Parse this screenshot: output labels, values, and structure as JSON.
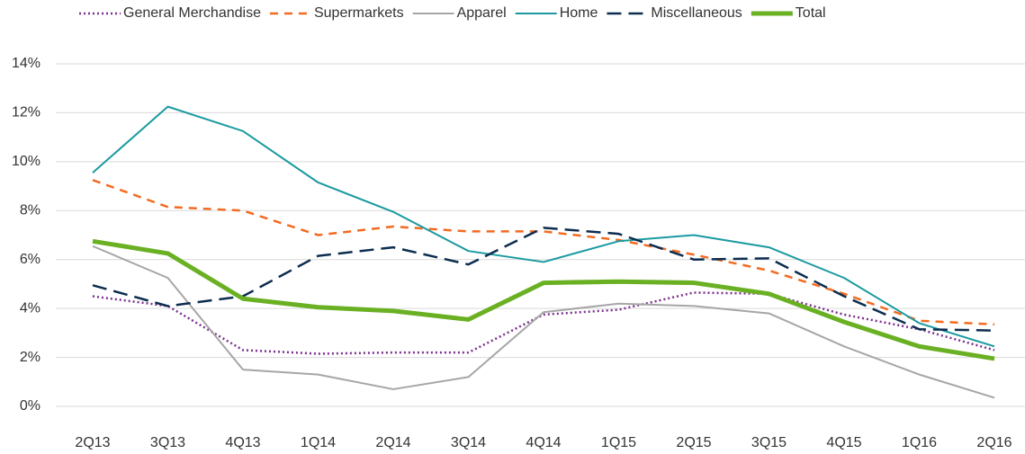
{
  "chart_data": {
    "type": "line",
    "categories": [
      "2Q13",
      "3Q13",
      "4Q13",
      "1Q14",
      "2Q14",
      "3Q14",
      "4Q14",
      "1Q15",
      "2Q15",
      "3Q15",
      "4Q15",
      "1Q16",
      "2Q16"
    ],
    "series": [
      {
        "name": "General Merchandise",
        "color": "#7b2f8e",
        "style": "dotted",
        "values": [
          4.5,
          4.1,
          2.3,
          2.15,
          2.2,
          2.2,
          3.75,
          3.95,
          4.65,
          4.6,
          3.75,
          3.15,
          2.3
        ]
      },
      {
        "name": "Supermarkets",
        "color": "#f26b21",
        "style": "dashed",
        "values": [
          9.25,
          8.15,
          8.0,
          7.0,
          7.35,
          7.15,
          7.15,
          6.8,
          6.2,
          5.55,
          4.6,
          3.5,
          3.35
        ]
      },
      {
        "name": "Apparel",
        "color": "#a6a6a6",
        "style": "solid",
        "values": [
          6.55,
          5.25,
          1.5,
          1.3,
          0.7,
          1.2,
          3.85,
          4.2,
          4.1,
          3.8,
          2.45,
          1.3,
          0.35
        ]
      },
      {
        "name": "Home",
        "color": "#1a9aa0",
        "style": "solid",
        "values": [
          9.55,
          12.25,
          11.25,
          9.15,
          7.95,
          6.35,
          5.9,
          6.75,
          7.0,
          6.5,
          5.25,
          3.4,
          2.45
        ]
      },
      {
        "name": "Miscellaneous",
        "color": "#0c2d4f",
        "style": "longdash",
        "values": [
          4.95,
          4.1,
          4.5,
          6.15,
          6.5,
          5.8,
          7.3,
          7.05,
          6.0,
          6.05,
          4.5,
          3.15,
          3.1
        ]
      },
      {
        "name": "Total",
        "color": "#6ab023",
        "style": "thick",
        "values": [
          6.75,
          6.25,
          4.4,
          4.05,
          3.9,
          3.55,
          5.05,
          5.1,
          5.05,
          4.6,
          3.45,
          2.45,
          1.95
        ]
      }
    ],
    "ylim": [
      0,
      14
    ],
    "yticks": [
      {
        "value": 0,
        "label": "0%"
      },
      {
        "value": 2,
        "label": "2%"
      },
      {
        "value": 4,
        "label": "4%"
      },
      {
        "value": 6,
        "label": "6%"
      },
      {
        "value": 8,
        "label": "8%"
      },
      {
        "value": 10,
        "label": "10%"
      },
      {
        "value": 12,
        "label": "12%"
      },
      {
        "value": 14,
        "label": "14%"
      }
    ],
    "grid": true,
    "legend": "top"
  }
}
